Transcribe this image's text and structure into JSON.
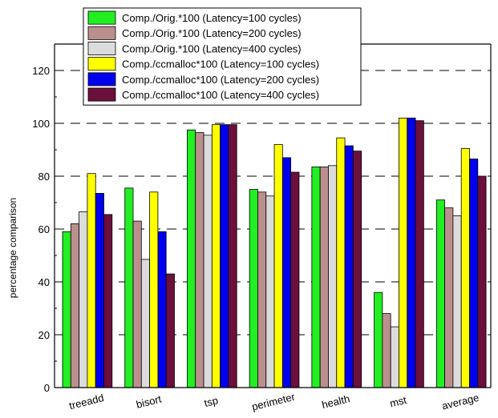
{
  "chart_data": {
    "type": "bar",
    "title": "",
    "xlabel": "",
    "ylabel": "percentage comparison",
    "ylim": [
      0,
      130
    ],
    "yticks": [
      0,
      20,
      40,
      60,
      80,
      100,
      120
    ],
    "grid": "horizontal dashed",
    "legend_position": "top",
    "categories": [
      "treeadd",
      "bisort",
      "tsp",
      "perimeter",
      "health",
      "mst",
      "average"
    ],
    "series": [
      {
        "name": "Comp./Orig.*100 (Latency=100 cycles)",
        "color": "#22ee22",
        "values": [
          59,
          75.5,
          97.5,
          75,
          83.5,
          36,
          71
        ]
      },
      {
        "name": "Comp./Orig.*100 (Latency=200 cycles)",
        "color": "#bc8f8f",
        "values": [
          62,
          63,
          96.5,
          74,
          83.5,
          28,
          68
        ]
      },
      {
        "name": "Comp./Orig.*100 (Latency=400 cycles)",
        "color": "#dcdcdc",
        "values": [
          66.5,
          48.5,
          95.5,
          72.5,
          84,
          23,
          65
        ]
      },
      {
        "name": "Comp./ccmalloc*100 (Latency=100 cycles)",
        "color": "#ffff00",
        "values": [
          81,
          74,
          99.5,
          92,
          94.5,
          102,
          90.5
        ]
      },
      {
        "name": "Comp./ccmalloc*100 (Latency=200 cycles)",
        "color": "#0000ee",
        "values": [
          73.5,
          59,
          99.5,
          87,
          91.5,
          102,
          86.5
        ]
      },
      {
        "name": "Comp./ccmalloc*100 (Latency=400 cycles)",
        "color": "#6b0f3c",
        "values": [
          65.5,
          43,
          99.5,
          81.5,
          89.5,
          101,
          80
        ]
      }
    ]
  }
}
